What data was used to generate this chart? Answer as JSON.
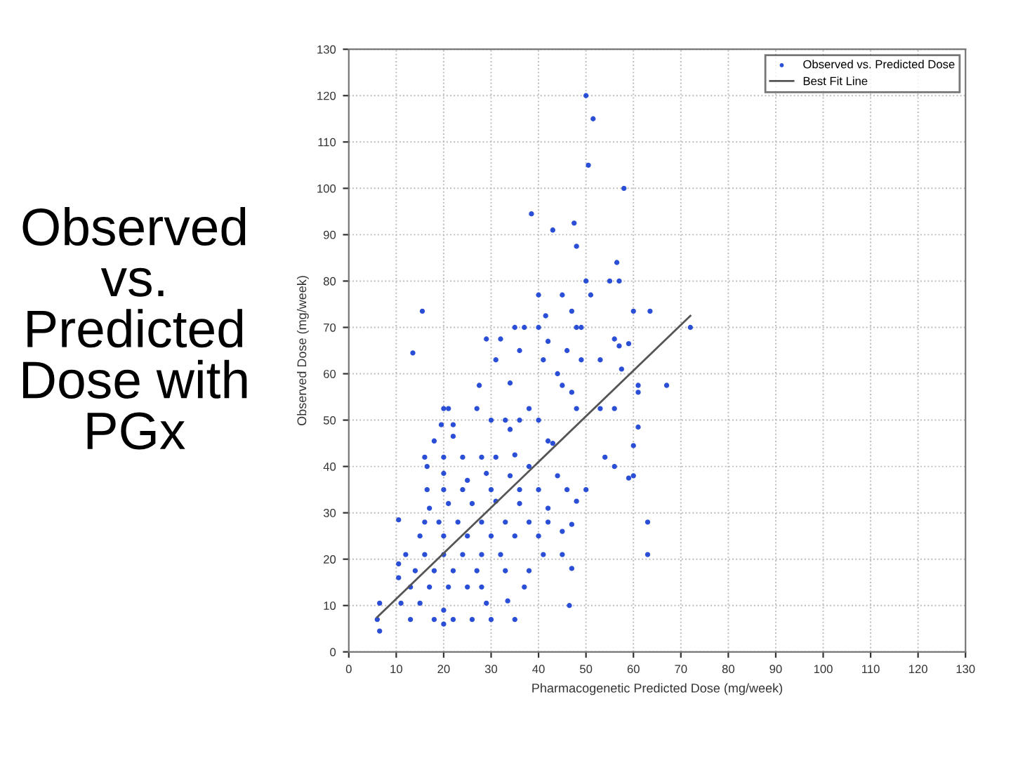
{
  "chart_data": {
    "type": "scatter",
    "title": "Observed\nvs.\nPredicted\nDose with\nPGx",
    "xlabel": "Pharmacogenetic Predicted Dose (mg/week)",
    "ylabel": "Observed Dose (mg/week)",
    "xlim": [
      0,
      130
    ],
    "ylim": [
      0,
      130
    ],
    "xticks": [
      0,
      10,
      20,
      30,
      40,
      50,
      60,
      70,
      80,
      90,
      100,
      110,
      120,
      130
    ],
    "yticks": [
      0,
      10,
      20,
      30,
      40,
      50,
      60,
      70,
      80,
      90,
      100,
      110,
      120,
      130
    ],
    "grid": true,
    "legend": "top right",
    "series": [
      {
        "name": "Observed vs. Predicted Dose",
        "marker": "circle",
        "color": "#2a4fd6",
        "x": [
          50,
          51.5,
          50.5,
          58,
          38.5,
          43,
          47.5,
          48,
          50,
          55,
          57,
          56.5,
          40,
          45,
          51,
          15.5,
          41.5,
          47,
          60,
          63.5,
          72,
          37,
          40,
          35,
          48,
          49,
          29,
          32,
          13.5,
          36,
          42,
          46,
          57,
          59,
          56,
          31,
          41,
          57.5,
          49,
          44,
          53,
          27.5,
          34,
          45,
          47,
          61,
          61,
          67,
          20,
          21,
          27,
          38,
          48,
          53,
          56,
          30,
          33,
          36,
          40,
          19.5,
          22,
          34,
          42,
          43,
          60,
          61,
          18,
          22,
          16,
          20,
          24,
          28,
          31,
          35,
          54,
          56,
          60,
          59,
          16.5,
          20,
          25,
          29,
          34,
          38,
          44,
          16.5,
          20,
          24,
          30,
          36,
          40,
          46,
          50,
          17,
          21,
          26,
          31,
          36,
          42,
          48,
          16,
          19,
          23,
          28,
          33,
          38,
          42,
          47,
          63,
          10.5,
          15,
          20,
          25,
          30,
          35,
          40,
          45,
          12,
          16,
          20,
          24,
          28,
          32,
          41,
          45,
          63,
          10.5,
          14,
          18,
          22,
          27,
          33,
          38,
          47,
          10.5,
          13,
          17,
          21,
          25,
          28,
          37,
          6.5,
          11,
          15,
          20,
          29,
          33.5,
          46.5,
          6,
          13,
          18,
          22,
          26,
          30,
          35,
          20,
          6.5
        ],
        "values": [
          120,
          115,
          105,
          100,
          94.5,
          91,
          92.5,
          87.5,
          80,
          80,
          80,
          84,
          77,
          77,
          77,
          73.5,
          72.5,
          73.5,
          73.5,
          73.5,
          70,
          70,
          70,
          70,
          70,
          70,
          67.5,
          67.5,
          64.5,
          65,
          67,
          65,
          66,
          66.5,
          67.5,
          63,
          63,
          61,
          63,
          60,
          63,
          57.5,
          58,
          57.5,
          56,
          56,
          57.5,
          57.5,
          52.5,
          52.5,
          52.5,
          52.5,
          52.5,
          52.5,
          52.5,
          50,
          50,
          50,
          50,
          49,
          49,
          48,
          45.5,
          45,
          44.5,
          48.5,
          45.5,
          46.5,
          42,
          42,
          42,
          42,
          42,
          42.5,
          42,
          40,
          38,
          37.5,
          40,
          38.5,
          37,
          38.5,
          38,
          40,
          38,
          35,
          35,
          35,
          35,
          35,
          35,
          35,
          35,
          31,
          32,
          32,
          32.5,
          32,
          31,
          32.5,
          28,
          28,
          28,
          28,
          28,
          28,
          28,
          27.5,
          28,
          28.5,
          25,
          25,
          25,
          25,
          25,
          25,
          26,
          21,
          21,
          21,
          21,
          21,
          21,
          21,
          21,
          21,
          19,
          17.5,
          17.5,
          17.5,
          17.5,
          17.5,
          17.5,
          18,
          16,
          14,
          14,
          14,
          14,
          14,
          14,
          10.5,
          10.5,
          10.5,
          9,
          10.5,
          11,
          10,
          7,
          7,
          7,
          7,
          7,
          7,
          7,
          6,
          4.5
        ]
      },
      {
        "name": "Best Fit Line",
        "type": "line",
        "line_style": "solid",
        "color": "#555555",
        "x": [
          6,
          72
        ],
        "values": [
          7.5,
          72.5
        ]
      }
    ]
  }
}
